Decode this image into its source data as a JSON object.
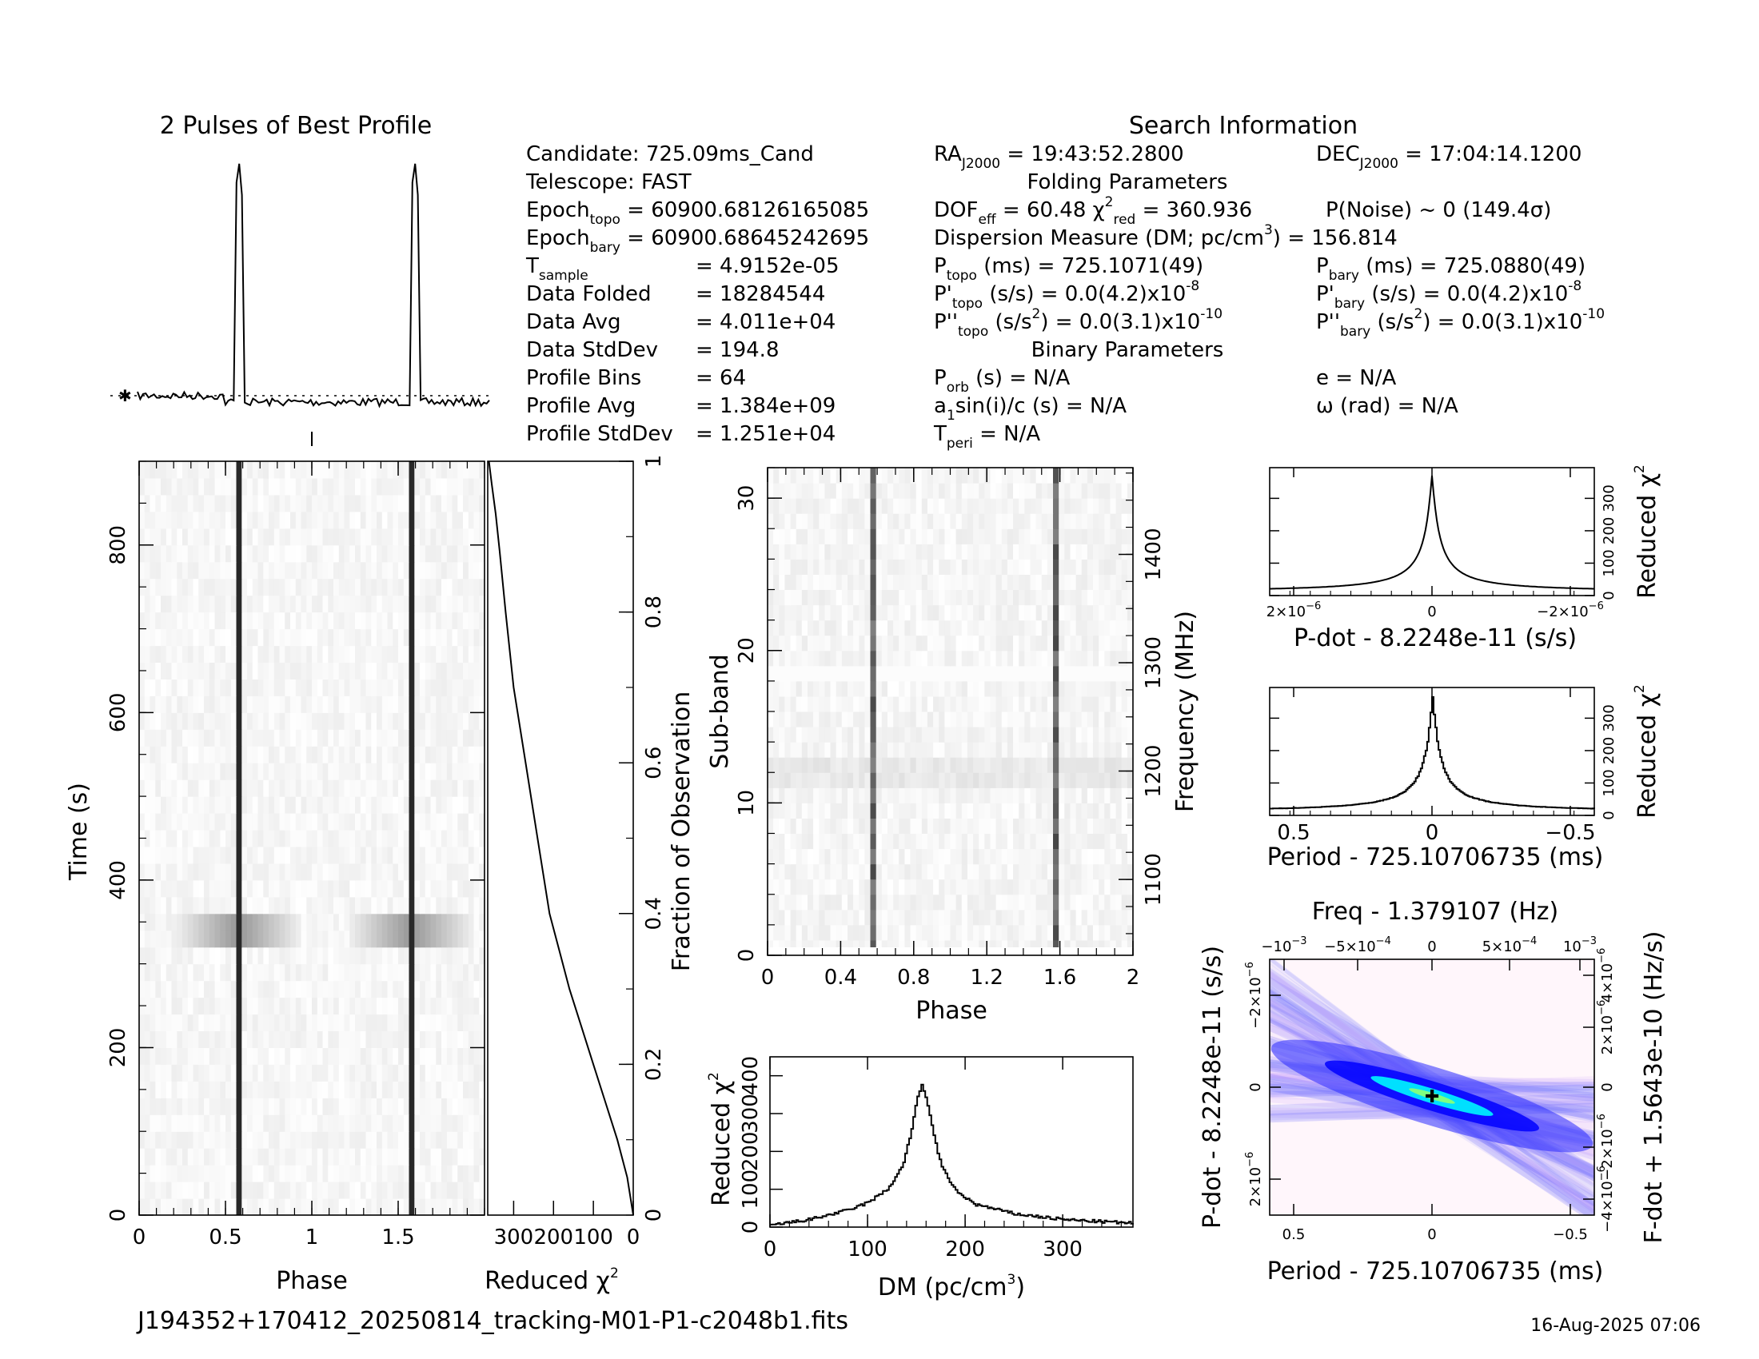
{
  "header": {
    "profile_title": "2 Pulses of Best Profile",
    "search_title": "Search Information",
    "folding_title": "Folding Parameters",
    "binary_title": "Binary Parameters",
    "filename": "J194352+170412_20250814_tracking-M01-P1-c2048b1.fits",
    "date": "16-Aug-2025 07:06"
  },
  "info_left": [
    {
      "label": "Candidate:  725.09ms_Cand"
    },
    {
      "label": "Telescope:  FAST"
    },
    {
      "label": "Epoch",
      "sub": "topo",
      "value": " = 60900.68126165085"
    },
    {
      "label": "Epoch",
      "sub": "bary",
      "value": " = 60900.68645242695"
    },
    {
      "label": "T",
      "sub": "sample",
      "value": "=  4.9152e-05"
    },
    {
      "label": "Data Folded",
      "value": "=  18284544"
    },
    {
      "label": "Data Avg",
      "value": "=  4.011e+04"
    },
    {
      "label": "Data StdDev",
      "value": "=  194.8"
    },
    {
      "label": "Profile Bins",
      "value": "=  64"
    },
    {
      "label": "Profile Avg",
      "value": "=  1.384e+09"
    },
    {
      "label": "Profile StdDev",
      "value": "=  1.251e+04"
    }
  ],
  "info_mid": {
    "ra_label": "RA",
    "ra_sub": "J2000",
    "ra_value": " = 19:43:52.2800",
    "dof_label": "DOF",
    "dof_sub": "eff",
    "dof_value": " = 60.48  χ",
    "chi_sup": "2",
    "chi_sub": "red",
    "chi_value": " = 360.936",
    "dm_text": "Dispersion Measure (DM; pc/cm",
    "dm_sup": "3",
    "dm_value": ") = 156.814",
    "ptopo_label": "P",
    "ptopo_sub": "topo",
    "ptopo_value": " (ms) =  725.1071(49)",
    "pdtopo_label": "P'",
    "pdtopo_sub": "topo",
    "pdtopo_value": " (s/s) = 0.0(4.2)x10",
    "pdtopo_exp": "-8",
    "pddtopo_label": "P''",
    "pddtopo_sub": "topo",
    "pddtopo_value": " (s/s",
    "pddtopo_sup": "2",
    "pddtopo_value2": ") = 0.0(3.1)x10",
    "pddtopo_exp": "-10",
    "porb_label": "P",
    "porb_sub": "orb",
    "porb_value": " (s) = N/A",
    "a1_label": "a",
    "a1_sub": "1",
    "a1_value": "sin(i)/c (s) = N/A",
    "tperi_label": "T",
    "tperi_sub": "peri",
    "tperi_value": " = N/A"
  },
  "info_right": {
    "dec_label": "DEC",
    "dec_sub": "J2000",
    "dec_value": " = 17:04:14.1200",
    "pnoise": "P(Noise) ~ 0    (149.4σ)",
    "pbary_label": "P",
    "pbary_sub": "bary",
    "pbary_value": " (ms) =  725.0880(49)",
    "pdbary_label": "P'",
    "pdbary_sub": "bary",
    "pdbary_value": " (s/s) = 0.0(4.2)x10",
    "pdbary_exp": "-8",
    "pddbary_label": "P''",
    "pddbary_sub": "bary",
    "pddbary_value": " (s/s",
    "pddbary_sup": "2",
    "pddbary_value2": ") = 0.0(3.1)x10",
    "pddbary_exp": "-10",
    "e_value": "e = N/A",
    "omega_value": "ω (rad) = N/A"
  },
  "chart_data": [
    {
      "id": "profile",
      "type": "line",
      "title": "2 Pulses of Best Profile",
      "x_range": [
        0,
        2
      ],
      "description_peaks_phase": [
        0.575,
        1.575
      ],
      "baseline": "dotted"
    },
    {
      "id": "time_phase",
      "type": "heatmap",
      "xlabel": "Phase",
      "ylabel": "Time (s)",
      "x_ticks": [
        "0",
        "0.5",
        "1",
        "1.5"
      ],
      "x_tick_values": [
        0,
        0.5,
        1,
        1.5
      ],
      "y_ticks": [
        "0",
        "200",
        "400",
        "600",
        "800"
      ],
      "y_tick_values": [
        0,
        200,
        400,
        600,
        800
      ],
      "x_range": [
        0,
        2
      ],
      "y_range": [
        0,
        900
      ],
      "pulse_phases": [
        0.575,
        1.575
      ],
      "bright_time_range": [
        320,
        370
      ]
    },
    {
      "id": "chi_vs_time",
      "type": "line",
      "xlabel": "Reduced χ",
      "xlabel_sup": "2",
      "ylabel": "Fraction of Observation",
      "x_ticks": [
        "300",
        "200",
        "100",
        "0"
      ],
      "x_tick_values": [
        300,
        200,
        100,
        0
      ],
      "y_ticks": [
        "0.2",
        "0.4",
        "0.6",
        "0.8",
        "1"
      ],
      "y_tick_values": [
        0.2,
        0.4,
        0.6,
        0.8,
        1
      ],
      "x_range": [
        0,
        365
      ],
      "y_range": [
        0,
        1
      ],
      "x": [
        0,
        15,
        40,
        70,
        100,
        130,
        160,
        185,
        210,
        240,
        270,
        300,
        320,
        335,
        345,
        355,
        362
      ],
      "y": [
        0,
        0.05,
        0.1,
        0.15,
        0.2,
        0.25,
        0.3,
        0.35,
        0.4,
        0.5,
        0.6,
        0.7,
        0.8,
        0.88,
        0.93,
        0.97,
        1.0
      ]
    },
    {
      "id": "subband_phase",
      "type": "heatmap",
      "xlabel": "Phase",
      "ylabel": "Sub-band",
      "y2label": "Frequency (MHz)",
      "x_ticks": [
        "0",
        "0.4",
        "0.8",
        "1.2",
        "1.6",
        "2"
      ],
      "x_tick_values": [
        0,
        0.4,
        0.8,
        1.2,
        1.6,
        2
      ],
      "y_ticks": [
        "0",
        "10",
        "20",
        "30"
      ],
      "y_tick_values": [
        0,
        10,
        20,
        30
      ],
      "y2_ticks": [
        "1100",
        "1200",
        "1300",
        "1400"
      ],
      "y2_tick_values": [
        1100,
        1200,
        1300,
        1400
      ],
      "x_range": [
        0,
        2
      ],
      "y_range": [
        0,
        32
      ],
      "y2_range": [
        1030,
        1480
      ],
      "pulse_phases": [
        0.57,
        1.58
      ]
    },
    {
      "id": "dm_curve",
      "type": "line",
      "xlabel": "DM (pc/cm",
      "xlabel_sup": "3",
      "xlabel_end": ")",
      "ylabel": "Reduced χ",
      "ylabel_sup": "2",
      "x_ticks": [
        "0",
        "100",
        "200",
        "300"
      ],
      "x_tick_values": [
        0,
        100,
        200,
        300
      ],
      "y_ticks": [
        "0",
        "100",
        "200",
        "300",
        "400"
      ],
      "y_tick_values": [
        0,
        100,
        200,
        300,
        400
      ],
      "x_range": [
        0,
        372
      ],
      "y_range": [
        0,
        450
      ],
      "x": [
        0,
        40,
        80,
        100,
        120,
        135,
        145,
        150,
        155,
        160,
        165,
        175,
        190,
        210,
        250,
        300,
        372
      ],
      "y": [
        5,
        20,
        45,
        65,
        100,
        160,
        260,
        340,
        375,
        340,
        270,
        160,
        95,
        60,
        35,
        20,
        10
      ]
    },
    {
      "id": "pdot_chi",
      "type": "line",
      "xlabel": "P-dot - 8.2248e-11 (s/s)",
      "ylabel": "Reduced χ",
      "ylabel_sup": "2",
      "x_ticks": [
        "2×10",
        "0",
        "−2×10"
      ],
      "x_tick_exps": [
        "−6",
        "",
        "−6"
      ],
      "y_ticks": [
        "0",
        "100",
        "200",
        "300"
      ],
      "y_tick_values": [
        0,
        100,
        200,
        300
      ]
    },
    {
      "id": "period_chi",
      "type": "line",
      "xlabel": "Period - 725.10706735 (ms)",
      "ylabel": "Reduced χ",
      "ylabel_sup": "2",
      "x_ticks": [
        "0.5",
        "0",
        "−0.5"
      ],
      "y_ticks": [
        "0",
        "100",
        "200",
        "300"
      ],
      "y_tick_values": [
        0,
        100,
        200,
        300
      ]
    },
    {
      "id": "ppdot_plane",
      "type": "heatmap",
      "title": "Freq - 1.379107 (Hz)",
      "xlabel": "Period - 725.10706735 (ms)",
      "ylabel": "P-dot - 8.2248e-11 (s/s)",
      "y2label": "F-dot + 1.5643e-10 (Hz/s)",
      "x_ticks": [
        "0.5",
        "0",
        "−0.5"
      ],
      "top_ticks": [
        "−10",
        "−5×10",
        "0",
        "5×10",
        "10"
      ],
      "top_exps": [
        "−3",
        "−4",
        "",
        "−4",
        "−3"
      ],
      "y_ticks": [
        "−2×10",
        "0",
        "2×10"
      ],
      "y_exps": [
        "−6",
        "",
        "−6"
      ],
      "y2_ticks": [
        "−4×10",
        "−2×10",
        "0",
        "2×10",
        "4×10"
      ],
      "y2_exps": [
        "−6",
        "−6",
        "",
        "−6",
        "−6"
      ]
    }
  ]
}
